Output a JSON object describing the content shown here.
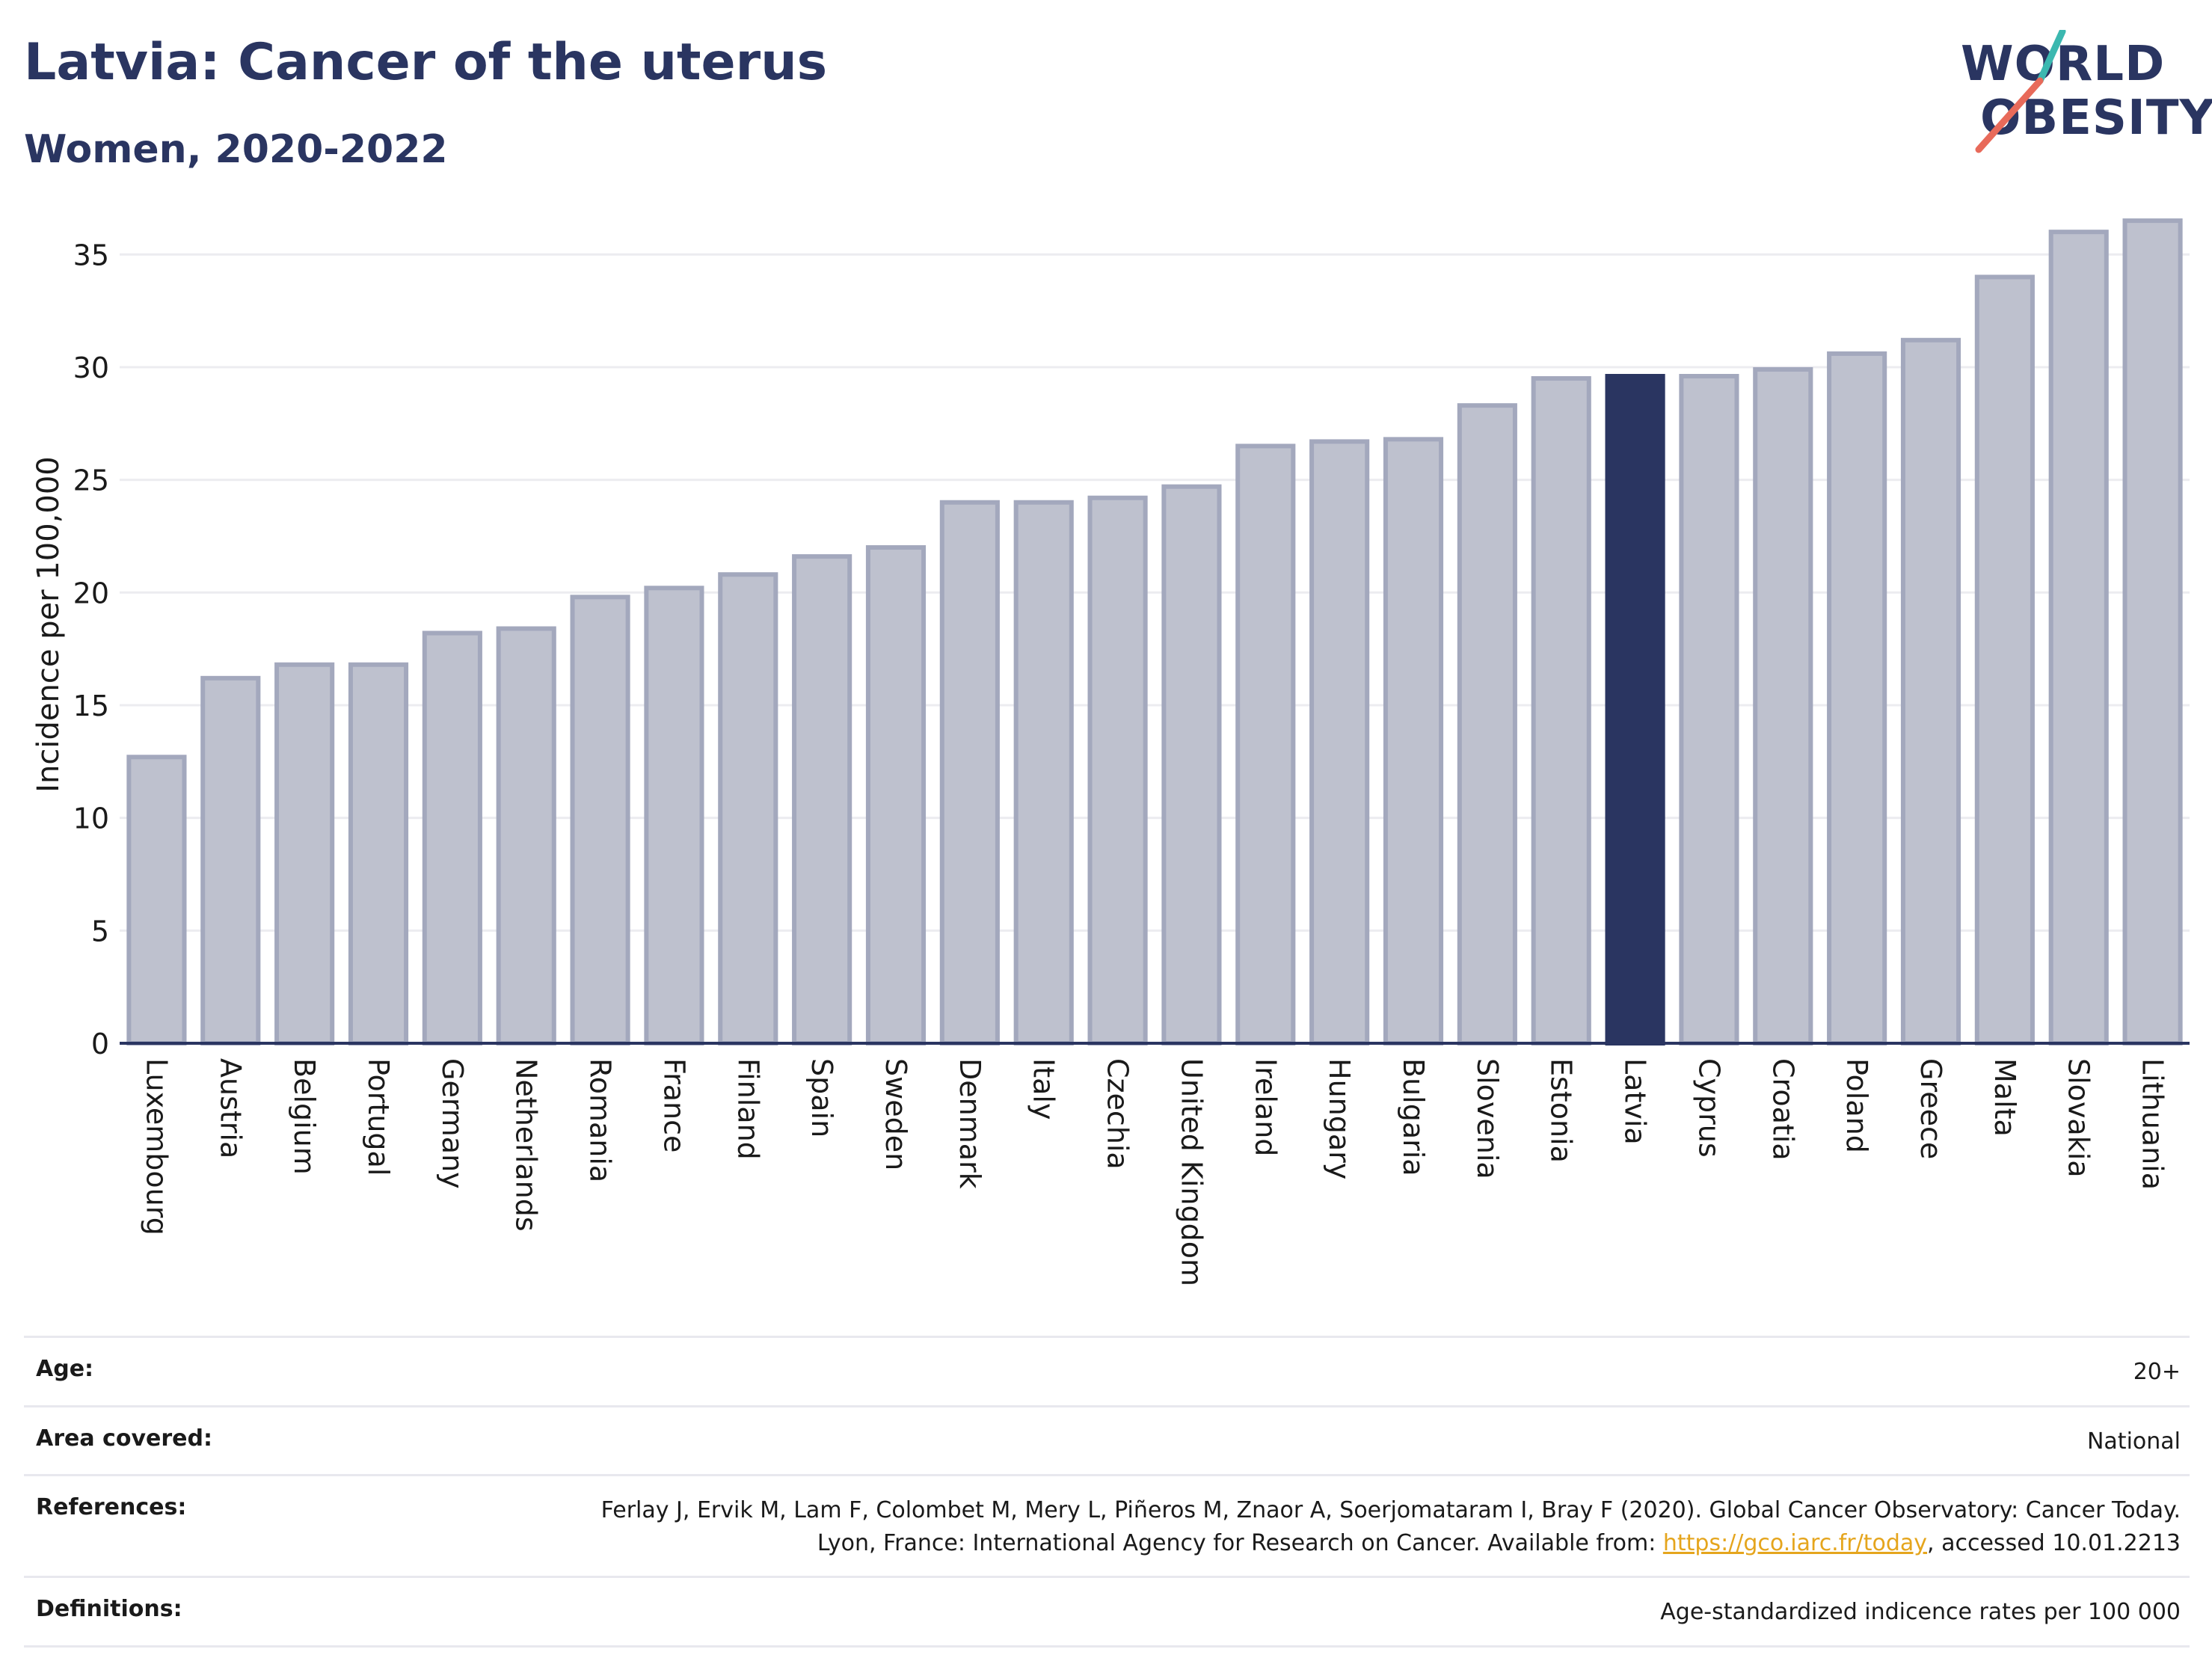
{
  "header": {
    "title": "Latvia: Cancer of the uterus",
    "subtitle": "Women, 2020-2022",
    "logo_line1": "WORLD",
    "logo_line2": "OBESITY"
  },
  "colors": {
    "title": "#2a3561",
    "bar_default": "#bec1ce",
    "bar_default_stroke": "#a3a8bd",
    "bar_highlight": "#2a3561",
    "gridline": "#ececf0",
    "axis": "#2a3561",
    "logo_slash_teal": "#3bb8b0",
    "logo_slash_red": "#e86a5a",
    "link": "#e5a51d"
  },
  "chart_data": {
    "type": "bar",
    "title": "Latvia: Cancer of the uterus",
    "subtitle": "Women, 2020-2022",
    "xlabel": "",
    "ylabel": "Incidence per 100,000",
    "ylim": [
      0,
      37
    ],
    "yticks": [
      0,
      5,
      10,
      15,
      20,
      25,
      30,
      35
    ],
    "grid": true,
    "highlight": "Latvia",
    "categories": [
      "Luxembourg",
      "Austria",
      "Belgium",
      "Portugal",
      "Germany",
      "Netherlands",
      "Romania",
      "France",
      "Finland",
      "Spain",
      "Sweden",
      "Denmark",
      "Italy",
      "Czechia",
      "United Kingdom",
      "Ireland",
      "Hungary",
      "Bulgaria",
      "Slovenia",
      "Estonia",
      "Latvia",
      "Cyprus",
      "Croatia",
      "Poland",
      "Greece",
      "Malta",
      "Slovakia",
      "Lithuania"
    ],
    "values": [
      12.7,
      16.2,
      16.8,
      16.8,
      18.2,
      18.4,
      19.8,
      20.2,
      20.8,
      21.6,
      22.0,
      24.0,
      24.0,
      24.2,
      24.7,
      26.5,
      26.7,
      26.8,
      28.3,
      29.5,
      29.6,
      29.6,
      29.9,
      30.6,
      31.2,
      34.0,
      36.0,
      36.5
    ]
  },
  "meta": {
    "age_label": "Age:",
    "age_value": "20+",
    "area_label": "Area covered:",
    "area_value": "National",
    "references_label": "References:",
    "references_text_1": "Ferlay J, Ervik M, Lam F, Colombet M, Mery L, Piñeros M, Znaor A, Soerjomataram I, Bray F (2020). Global Cancer Observatory: Cancer Today. Lyon, France: International Agency for Research on Cancer. Available from: ",
    "references_link": "https://gco.iarc.fr/today",
    "references_text_2": ", accessed 10.01.2213",
    "definitions_label": "Definitions:",
    "definitions_value": "Age-standardized indicence rates per 100 000"
  }
}
